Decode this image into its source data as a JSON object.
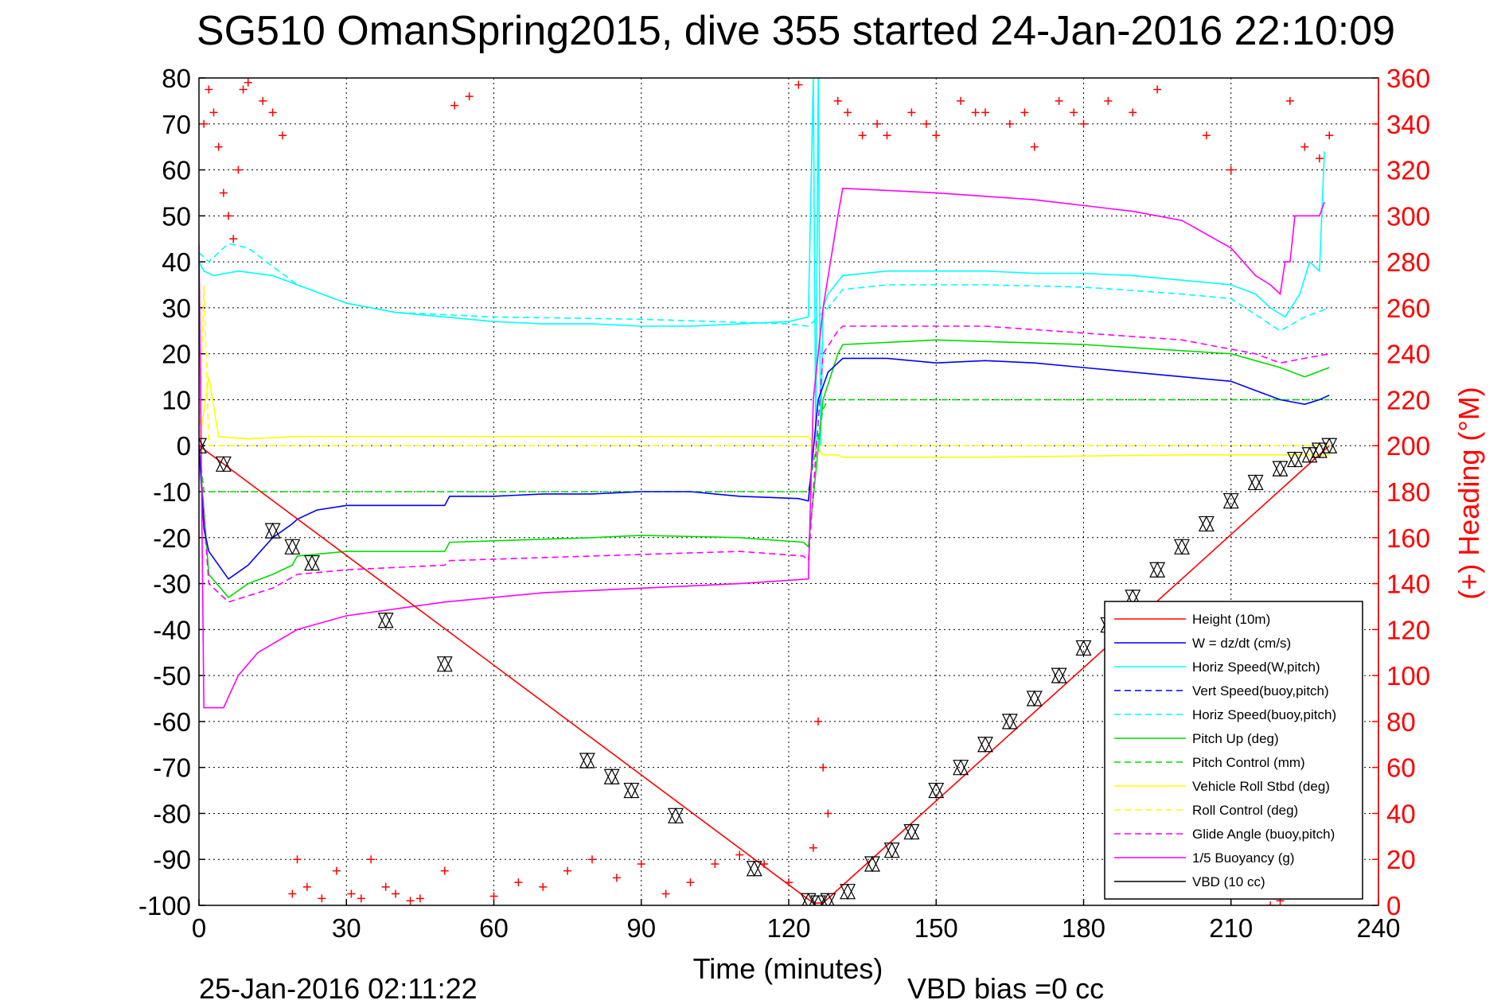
{
  "chart_data": {
    "type": "line",
    "title": "SG510 OmanSpring2015, dive 355 started 24-Jan-2016 22:10:09",
    "xlabel": "Time (minutes)",
    "ylabel": "",
    "y2label": "(+) Heading (°M)",
    "xlim": [
      0,
      240
    ],
    "ylim": [
      -100,
      80
    ],
    "y2lim": [
      0,
      360
    ],
    "xticks": [
      "0",
      "30",
      "60",
      "90",
      "120",
      "150",
      "180",
      "210",
      "240"
    ],
    "yticks": [
      "80",
      "70",
      "60",
      "50",
      "40",
      "30",
      "20",
      "10",
      "0",
      "-10",
      "-20",
      "-30",
      "-40",
      "-50",
      "-60",
      "-70",
      "-80",
      "-90",
      "-100"
    ],
    "y2ticks": [
      "360",
      "340",
      "320",
      "300",
      "280",
      "260",
      "240",
      "220",
      "200",
      "180",
      "160",
      "140",
      "120",
      "100",
      "80",
      "60",
      "40",
      "20",
      "0"
    ],
    "grid": true,
    "legend_position": "lower-right",
    "footer_left": "25-Jan-2016 02:11:22",
    "footer_right": "VBD bias =0 cc",
    "series": [
      {
        "name": "Height (10m)",
        "color": "#ff0000",
        "style": "solid",
        "x": [
          0,
          125,
          127,
          230
        ],
        "y": [
          0,
          -99.5,
          -99.5,
          0
        ]
      },
      {
        "name": "W = dz/dt (cm/s)",
        "color": "#0000ff",
        "style": "solid",
        "x": [
          0,
          1,
          2,
          6,
          10,
          15,
          19,
          20,
          24,
          30,
          40,
          50,
          51,
          60,
          70,
          80,
          90,
          100,
          110,
          122,
          124,
          126,
          128,
          130,
          131,
          140,
          150,
          160,
          170,
          180,
          190,
          200,
          210,
          215,
          220,
          225,
          228,
          230
        ],
        "y": [
          0,
          -18,
          -23,
          -29,
          -26,
          -20,
          -17,
          -16,
          -14,
          -13,
          -13,
          -13,
          -11,
          -11,
          -10.5,
          -10.5,
          -10,
          -10,
          -11,
          -11.5,
          -12,
          10,
          16,
          18,
          19,
          19,
          18,
          18.5,
          18,
          17,
          16,
          15,
          14,
          12,
          10,
          9,
          10,
          11
        ]
      },
      {
        "name": "Horiz Speed(W,pitch)",
        "color": "#00ffff",
        "style": "solid",
        "x": [
          0,
          1,
          3,
          8,
          15,
          20,
          30,
          40,
          50,
          60,
          70,
          80,
          90,
          100,
          110,
          120,
          124,
          125,
          125.5,
          126,
          126.5,
          127,
          128,
          131,
          140,
          150,
          160,
          170,
          180,
          190,
          200,
          210,
          215,
          218,
          221,
          224,
          226,
          228,
          229
        ],
        "y": [
          40,
          38,
          37,
          38,
          37,
          35,
          31,
          29,
          28,
          27,
          26.5,
          26.5,
          26,
          26,
          26.5,
          27,
          28,
          80,
          0,
          80,
          0,
          30,
          33,
          37,
          38,
          38,
          38,
          37.5,
          37.5,
          37,
          36,
          35,
          33,
          30,
          28,
          33,
          40,
          38,
          64
        ]
      },
      {
        "name": "Vert Speed(buoy,pitch)",
        "color": "#0000ff",
        "style": "dashed",
        "x": [],
        "y": []
      },
      {
        "name": "Horiz Speed(buoy,pitch)",
        "color": "#00ffff",
        "style": "dashed",
        "x": [
          0,
          2,
          6,
          10,
          20,
          30,
          40,
          60,
          90,
          120,
          124,
          128,
          131,
          140,
          160,
          180,
          200,
          210,
          220,
          225,
          230
        ],
        "y": [
          42,
          40,
          44,
          43,
          35,
          31,
          29,
          28,
          27.5,
          26.5,
          26,
          30,
          34,
          35,
          35,
          34.5,
          33,
          32,
          25,
          28,
          30
        ]
      },
      {
        "name": "Pitch Up (deg)",
        "color": "#00dd00",
        "style": "solid",
        "x": [
          0,
          2,
          6,
          10,
          15,
          19,
          20,
          30,
          50,
          51,
          80,
          90,
          110,
          123,
          124,
          127,
          130,
          131,
          150,
          180,
          210,
          220,
          225,
          230
        ],
        "y": [
          0,
          -28,
          -33,
          -30,
          -28,
          -26,
          -24,
          -23,
          -23,
          -21,
          -20,
          -19.5,
          -20,
          -21,
          -22,
          10,
          20,
          22,
          23,
          22,
          20,
          17,
          15,
          17
        ]
      },
      {
        "name": "Pitch Control (mm)",
        "color": "#00dd00",
        "style": "dashed",
        "x": [
          0,
          1,
          2,
          20,
          123,
          124,
          127,
          128,
          131,
          230
        ],
        "y": [
          0,
          -10,
          -10,
          -10,
          -10,
          -10,
          8,
          10,
          10,
          10
        ]
      },
      {
        "name": "Vehicle Roll Stbd (deg)",
        "color": "#ffff00",
        "style": "solid",
        "x": [
          0,
          2,
          4,
          10,
          20,
          60,
          120,
          123,
          124,
          127,
          130,
          131,
          160,
          200,
          230
        ],
        "y": [
          0,
          15,
          2,
          1.5,
          2,
          2,
          2,
          2,
          2,
          -2,
          -2,
          -2.5,
          -2.5,
          -2,
          -2
        ]
      },
      {
        "name": "Roll Control (deg)",
        "color": "#ffff00",
        "style": "dashed",
        "x": [
          0,
          1,
          2,
          123,
          124,
          127,
          128,
          230
        ],
        "y": [
          0,
          35,
          0,
          0,
          0,
          0,
          0,
          0
        ]
      },
      {
        "name": "Glide Angle (buoy,pitch)",
        "color": "#ff00ff",
        "style": "dashed",
        "x": [
          0,
          2,
          6,
          15,
          20,
          30,
          50,
          51,
          80,
          110,
          123,
          124,
          127,
          130,
          131,
          160,
          200,
          215,
          220,
          225,
          230
        ],
        "y": [
          0,
          -30,
          -34,
          -31,
          -28,
          -27,
          -26,
          -25,
          -24,
          -23,
          -24,
          -25,
          20,
          25,
          26,
          26,
          23,
          20,
          18,
          19,
          20
        ]
      },
      {
        "name": "1/5 Buoyancy (g)",
        "color": "#ff00ff",
        "style": "solid",
        "x": [
          0,
          1,
          5,
          8,
          12,
          20,
          30,
          50,
          70,
          90,
          110,
          124,
          125,
          127,
          130,
          131,
          150,
          170,
          190,
          200,
          210,
          215,
          218,
          220,
          221,
          222,
          223,
          228,
          229
        ],
        "y": [
          44,
          -57,
          -57,
          -50,
          -45,
          -40,
          -37,
          -34,
          -32,
          -31,
          -30,
          -29,
          10,
          30,
          50,
          56,
          55,
          53.5,
          51,
          49,
          43,
          37,
          35,
          33,
          40,
          40,
          50,
          50,
          53
        ]
      },
      {
        "name": "VBD (10 cc)",
        "color": "#000000",
        "style": "solid",
        "x": [
          0,
          0.5,
          1.5,
          2,
          124,
          125,
          130,
          131,
          217,
          218,
          221,
          222,
          230
        ],
        "y": [
          0,
          -10,
          -20,
          -20,
          -20,
          -19.5,
          22,
          22.5,
          22.5,
          27,
          27,
          33,
          33
        ]
      }
    ],
    "heading": {
      "name": "(+) Heading",
      "color": "#ff0000",
      "axis": "right",
      "x": [
        1,
        2,
        3,
        4,
        5,
        6,
        7,
        8,
        9,
        10,
        13,
        15,
        17,
        19,
        20,
        22,
        25,
        28,
        31,
        33,
        35,
        38,
        40,
        43,
        45,
        50,
        52,
        55,
        60,
        65,
        70,
        75,
        80,
        85,
        90,
        95,
        100,
        105,
        110,
        115,
        120,
        122,
        125,
        126,
        127,
        128,
        130,
        132,
        135,
        138,
        140,
        145,
        148,
        150,
        155,
        158,
        160,
        165,
        168,
        170,
        175,
        178,
        180,
        185,
        190,
        195,
        200,
        202,
        205,
        210,
        212,
        215,
        218,
        220,
        222,
        225,
        228,
        230
      ],
      "y": [
        340,
        355,
        345,
        330,
        310,
        300,
        290,
        320,
        355,
        358,
        350,
        345,
        335,
        5,
        20,
        8,
        3,
        15,
        5,
        3,
        20,
        8,
        5,
        2,
        3,
        15,
        348,
        352,
        4,
        10,
        8,
        15,
        20,
        12,
        18,
        5,
        10,
        18,
        22,
        18,
        10,
        357,
        25,
        80,
        60,
        40,
        350,
        345,
        335,
        340,
        335,
        345,
        340,
        335,
        350,
        345,
        345,
        340,
        345,
        330,
        350,
        345,
        340,
        350,
        345,
        355,
        15,
        40,
        335,
        320,
        10,
        5,
        0,
        2,
        350,
        330,
        325,
        335
      ]
    },
    "markers": {
      "style": "triangles",
      "color": "#000000",
      "x": [
        0,
        5,
        15,
        19,
        23,
        38,
        50,
        79,
        84,
        88,
        97,
        113,
        124,
        126,
        128,
        132,
        137,
        141,
        145,
        150,
        155,
        160,
        165,
        170,
        175,
        180,
        185,
        190,
        195,
        200,
        205,
        210,
        215,
        220,
        223,
        226,
        228,
        230
      ],
      "y": [
        0,
        -4,
        -18.5,
        -22,
        -25.5,
        -38,
        -47.5,
        -68.5,
        -72,
        -75,
        -80.5,
        -92,
        -99,
        -99.5,
        -99,
        -97,
        -91,
        -88,
        -84,
        -75,
        -70,
        -65,
        -60,
        -55,
        -50,
        -44,
        -39,
        -33,
        -27,
        -22,
        -17,
        -12,
        -8,
        -5,
        -3,
        -2,
        -1,
        0
      ]
    }
  }
}
